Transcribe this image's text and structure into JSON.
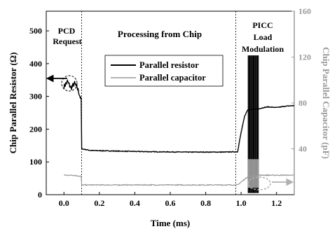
{
  "chart_data": {
    "type": "line",
    "xlabel": "Time (ms)",
    "ylabel_left": "Chip Parallel Resistor (Ω)",
    "ylabel_right": "Chip Parallel Capacitor (pF)",
    "xlim": [
      -0.1,
      1.3
    ],
    "ylim_left": [
      0,
      560
    ],
    "ylim_right": [
      0,
      160
    ],
    "x_ticks": [
      "0.0",
      "0.2",
      "0.4",
      "0.6",
      "0.8",
      "1.0",
      "1.2"
    ],
    "y_left_ticks": [
      "0",
      "100",
      "200",
      "300",
      "400",
      "500"
    ],
    "y_right_ticks": [
      "40",
      "80",
      "120",
      "160"
    ],
    "grid": false,
    "legend_position": "upper-center",
    "colors": {
      "resistor": "#000000",
      "capacitor": "#9a9a9a",
      "right_axis": "#9a9a9a",
      "annotation_marker": "#b0b0b0"
    },
    "phases": {
      "pcd_line1": "PCD",
      "pcd_line2": "Request",
      "processing": "Processing from Chip",
      "picc_line1": "PICC",
      "picc_line2": "Load",
      "picc_line3": "Modulation"
    },
    "phase_boundaries_ms": [
      0.1,
      0.97
    ],
    "series": [
      {
        "name": "Parallel resistor",
        "axis": "left",
        "color": "#000000",
        "x": [
          0.0,
          0.02,
          0.04,
          0.06,
          0.08,
          0.099,
          0.1,
          0.15,
          0.3,
          0.5,
          0.7,
          0.9,
          0.98,
          1.0,
          1.02,
          1.04,
          1.1,
          1.12,
          1.15,
          1.2,
          1.25,
          1.3
        ],
        "values": [
          330,
          345,
          325,
          340,
          320,
          285,
          140,
          135,
          133,
          131,
          130,
          130,
          131,
          190,
          240,
          262,
          262,
          265,
          268,
          266,
          270,
          272
        ]
      },
      {
        "name": "Parallel capacitor",
        "axis": "right",
        "color": "#9a9a9a",
        "x": [
          0.0,
          0.05,
          0.099,
          0.1,
          0.3,
          0.5,
          0.7,
          0.9,
          0.98,
          1.0,
          1.04,
          1.1,
          1.12,
          1.2,
          1.3
        ],
        "values": [
          17,
          17,
          16,
          8.5,
          8.5,
          8.5,
          8.5,
          8.5,
          8.5,
          11,
          16,
          17,
          17,
          17,
          17
        ]
      }
    ],
    "bursts": [
      {
        "series": "Parallel resistor",
        "x_range": [
          1.04,
          1.1
        ],
        "y_range": [
          5,
          425
        ]
      },
      {
        "series": "Parallel capacitor",
        "x_range": [
          1.04,
          1.1
        ],
        "y_range": [
          6,
          31
        ]
      }
    ]
  }
}
